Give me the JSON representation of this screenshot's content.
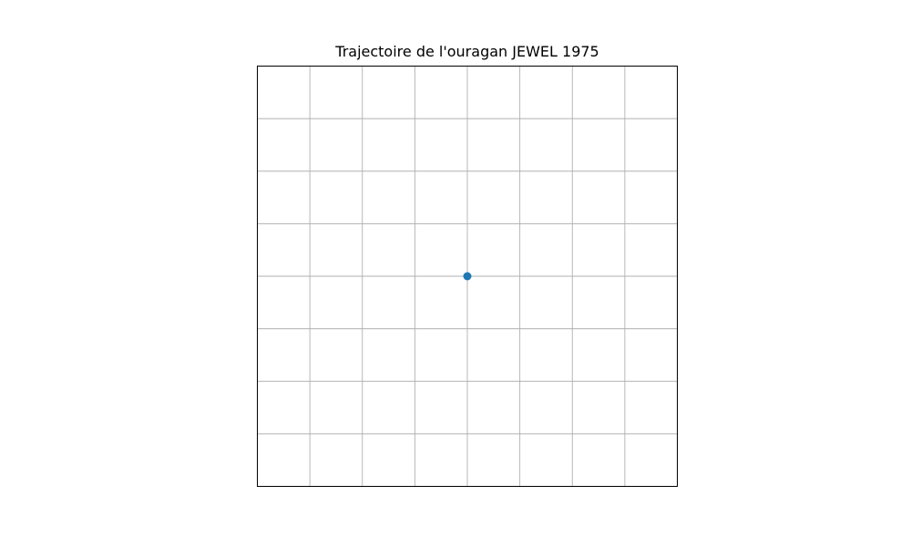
{
  "chart_data": {
    "type": "scatter",
    "title": "Trajectoire de l'ouragan JEWEL 1975",
    "xlabel": "",
    "ylabel": "",
    "grid": true,
    "grid_divisions": {
      "x": 8,
      "y": 8
    },
    "xlim": [
      0,
      8
    ],
    "ylim": [
      0,
      8
    ],
    "series": [
      {
        "color": "#1f77b4",
        "points": [
          {
            "x": 4,
            "y": 4
          }
        ]
      }
    ]
  }
}
